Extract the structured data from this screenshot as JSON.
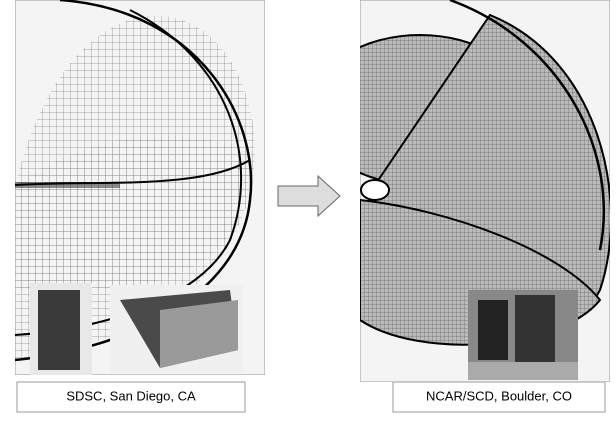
{
  "panels": [
    {
      "label": "SDSC, San Diego, CA"
    },
    {
      "label": "NCAR/SCD, Boulder, CO"
    }
  ]
}
